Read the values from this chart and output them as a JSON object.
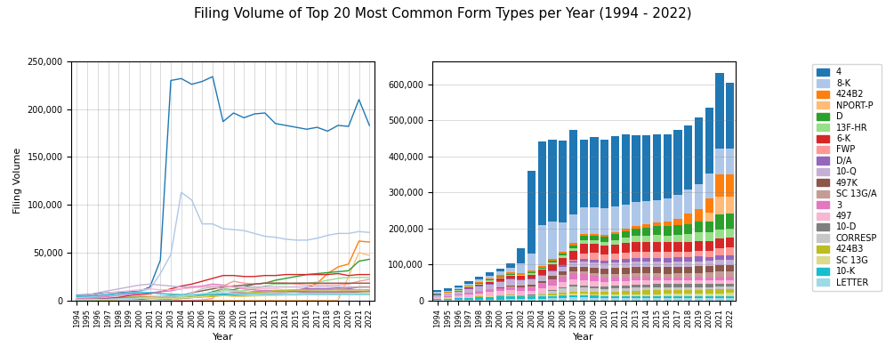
{
  "years": [
    1994,
    1995,
    1996,
    1997,
    1998,
    1999,
    2000,
    2001,
    2002,
    2003,
    2004,
    2005,
    2006,
    2007,
    2008,
    2009,
    2010,
    2011,
    2012,
    2013,
    2014,
    2015,
    2016,
    2017,
    2018,
    2019,
    2020,
    2021,
    2022
  ],
  "title": "Filing Volume of Top 20 Most Common Form Types per Year (1994 - 2022)",
  "form_types": [
    "LETTER",
    "10-K",
    "SC 13G",
    "424B3",
    "CORRESP",
    "10-D",
    "497",
    "3",
    "SC 13G/A",
    "497K",
    "10-Q",
    "D/A",
    "FWP",
    "6-K",
    "13F-HR",
    "D",
    "NPORT-P",
    "424B2",
    "8-K",
    "4"
  ],
  "colors": [
    "#9edae5",
    "#17becf",
    "#dbdb8d",
    "#bcbd22",
    "#c7c7c7",
    "#7f7f7f",
    "#f7b6d2",
    "#e377c2",
    "#c49c94",
    "#8c564b",
    "#c5b0d5",
    "#9467bd",
    "#ff9896",
    "#d62728",
    "#98df8a",
    "#2ca02c",
    "#ffbb78",
    "#ff7f0e",
    "#aec7e8",
    "#1f77b4"
  ],
  "legend_order": [
    "4",
    "8-K",
    "424B2",
    "NPORT-P",
    "D",
    "13F-HR",
    "6-K",
    "FWP",
    "D/A",
    "10-Q",
    "497K",
    "SC 13G/A",
    "3",
    "497",
    "10-D",
    "CORRESP",
    "424B3",
    "SC 13G",
    "10-K",
    "LETTER"
  ],
  "legend_colors": [
    "#1f77b4",
    "#aec7e8",
    "#ff7f0e",
    "#ffbb78",
    "#2ca02c",
    "#98df8a",
    "#d62728",
    "#ff9896",
    "#9467bd",
    "#c5b0d5",
    "#8c564b",
    "#c49c94",
    "#e377c2",
    "#f7b6d2",
    "#7f7f7f",
    "#c7c7c7",
    "#bcbd22",
    "#dbdb8d",
    "#17becf",
    "#9edae5"
  ],
  "data": {
    "4": [
      5500,
      6000,
      7000,
      8000,
      8500,
      9000,
      9500,
      14000,
      42000,
      230000,
      232000,
      226000,
      229000,
      234000,
      187000,
      196000,
      191000,
      195000,
      196000,
      185000,
      183000,
      181000,
      179000,
      181000,
      177000,
      183000,
      182000,
      210000,
      183000
    ],
    "8-K": [
      3000,
      3200,
      3500,
      5000,
      7000,
      8000,
      9000,
      12000,
      28000,
      48000,
      113000,
      105000,
      80000,
      80000,
      75000,
      74000,
      73000,
      70000,
      67000,
      66000,
      64000,
      63000,
      63000,
      65000,
      68000,
      70000,
      70000,
      72000,
      71000
    ],
    "424B2": [
      1000,
      1000,
      1200,
      1500,
      2000,
      3000,
      4000,
      4000,
      4000,
      5000,
      5000,
      5000,
      5500,
      6000,
      5000,
      5000,
      5000,
      5500,
      6000,
      7000,
      8000,
      10000,
      13000,
      18000,
      28000,
      35000,
      38000,
      62000,
      61000
    ],
    "NPORT-P": [
      0,
      0,
      0,
      0,
      0,
      0,
      0,
      0,
      0,
      0,
      0,
      0,
      0,
      0,
      0,
      0,
      0,
      0,
      0,
      0,
      0,
      0,
      0,
      0,
      0,
      0,
      25000,
      50000,
      47000
    ],
    "D": [
      1000,
      1200,
      1500,
      2000,
      2500,
      3000,
      3000,
      2800,
      2000,
      2500,
      3000,
      4000,
      6000,
      9000,
      12000,
      11000,
      14000,
      17000,
      18000,
      21000,
      23000,
      25000,
      27000,
      28000,
      29000,
      30000,
      31000,
      41000,
      43000
    ],
    "13F-HR": [
      1000,
      1500,
      2000,
      2500,
      3000,
      3000,
      3000,
      3000,
      2800,
      3000,
      3500,
      4500,
      6000,
      8000,
      10000,
      10000,
      10000,
      12000,
      15000,
      17000,
      17000,
      18000,
      18000,
      19000,
      21000,
      23000,
      24000,
      24000,
      24000
    ],
    "6-K": [
      500,
      800,
      1000,
      2000,
      3000,
      5000,
      6000,
      7000,
      9000,
      12000,
      15000,
      17000,
      20000,
      23000,
      26000,
      26000,
      25000,
      25000,
      26000,
      26000,
      27000,
      27000,
      27000,
      27000,
      27000,
      28000,
      26000,
      27000,
      27000
    ],
    "FWP": [
      0,
      0,
      0,
      0,
      0,
      0,
      0,
      0,
      0,
      0,
      0,
      0,
      500,
      2000,
      15000,
      20000,
      18000,
      17000,
      18000,
      18000,
      18000,
      17000,
      16000,
      16000,
      16000,
      16000,
      17000,
      20000,
      22000
    ],
    "D/A": [
      1000,
      1000,
      1200,
      1500,
      2000,
      2500,
      3000,
      2800,
      2000,
      2000,
      2200,
      3000,
      4000,
      5000,
      7000,
      8000,
      8000,
      9000,
      10000,
      10000,
      11000,
      11000,
      12000,
      12000,
      12000,
      13000,
      12000,
      14000,
      14000
    ],
    "10-Q": [
      5000,
      5500,
      8000,
      10000,
      12000,
      14000,
      16000,
      17000,
      16000,
      15000,
      14000,
      14000,
      14000,
      14000,
      14000,
      14000,
      14000,
      14000,
      14000,
      14000,
      14000,
      14000,
      14000,
      14000,
      14000,
      14000,
      14000,
      14000,
      14000
    ],
    "497K": [
      0,
      0,
      0,
      0,
      0,
      500,
      1000,
      2000,
      3000,
      4000,
      5000,
      8000,
      10000,
      12000,
      14000,
      15000,
      16000,
      17000,
      18000,
      18000,
      18000,
      18000,
      18000,
      18000,
      18000,
      18000,
      18000,
      18000,
      18000
    ],
    "SC 13G/A": [
      500,
      600,
      700,
      900,
      1200,
      1500,
      2000,
      2500,
      2000,
      2000,
      2500,
      3000,
      4000,
      5500,
      7000,
      8000,
      8000,
      9000,
      9000,
      10000,
      10000,
      10000,
      10000,
      11000,
      11000,
      12000,
      13000,
      14000,
      14000
    ],
    "3": [
      1500,
      2000,
      3000,
      4000,
      5000,
      6000,
      7000,
      8000,
      9000,
      10000,
      12000,
      14000,
      15000,
      17000,
      16000,
      14000,
      12000,
      11000,
      10000,
      9000,
      9000,
      9000,
      8000,
      8000,
      8000,
      8000,
      8000,
      9000,
      10000
    ],
    "497": [
      3000,
      4000,
      6000,
      8000,
      9000,
      10000,
      11000,
      12000,
      11000,
      11000,
      12000,
      13000,
      14000,
      15000,
      15000,
      14000,
      13000,
      13000,
      12000,
      12000,
      11000,
      11000,
      11000,
      11000,
      11000,
      11000,
      10000,
      10000,
      9000
    ],
    "10-D": [
      0,
      0,
      0,
      0,
      0,
      0,
      0,
      0,
      500,
      1000,
      2000,
      3000,
      4000,
      5000,
      6000,
      6000,
      7000,
      8000,
      8000,
      9000,
      9000,
      9000,
      9000,
      9000,
      9000,
      9000,
      9000,
      9000,
      9000
    ],
    "CORRESP": [
      0,
      0,
      0,
      0,
      0,
      0,
      0,
      0,
      0,
      0,
      4000,
      8000,
      12000,
      14000,
      12000,
      10000,
      9000,
      8000,
      8000,
      8000,
      8000,
      8000,
      7000,
      7000,
      7000,
      7000,
      7000,
      7000,
      7000
    ],
    "424B3": [
      0,
      0,
      200,
      500,
      1000,
      1500,
      2000,
      2500,
      2000,
      2000,
      2500,
      3000,
      3500,
      4000,
      5000,
      6000,
      7000,
      8000,
      9000,
      10000,
      10000,
      11000,
      11000,
      11000,
      11000,
      11000,
      11000,
      11000,
      11000
    ],
    "SC 13G": [
      500,
      600,
      700,
      900,
      1200,
      1500,
      2000,
      2500,
      2000,
      2000,
      2500,
      3000,
      4000,
      5500,
      5000,
      4000,
      4000,
      4500,
      5000,
      5000,
      5500,
      5500,
      6000,
      6000,
      6000,
      6500,
      7000,
      7500,
      8000
    ],
    "10-K": [
      4000,
      4500,
      5000,
      6000,
      7000,
      7500,
      8000,
      8000,
      7000,
      6500,
      6000,
      6000,
      6000,
      6000,
      6000,
      6000,
      6000,
      6000,
      6000,
      6000,
      6000,
      6000,
      6000,
      6000,
      6000,
      6000,
      6000,
      6000,
      6000
    ],
    "LETTER": [
      500,
      600,
      800,
      1000,
      1500,
      2000,
      2500,
      3000,
      3500,
      4000,
      5000,
      6000,
      7000,
      8000,
      8000,
      7000,
      6000,
      6000,
      6000,
      6000,
      6000,
      6000,
      6000,
      6000,
      6000,
      6000,
      6000,
      6000,
      6000
    ]
  }
}
